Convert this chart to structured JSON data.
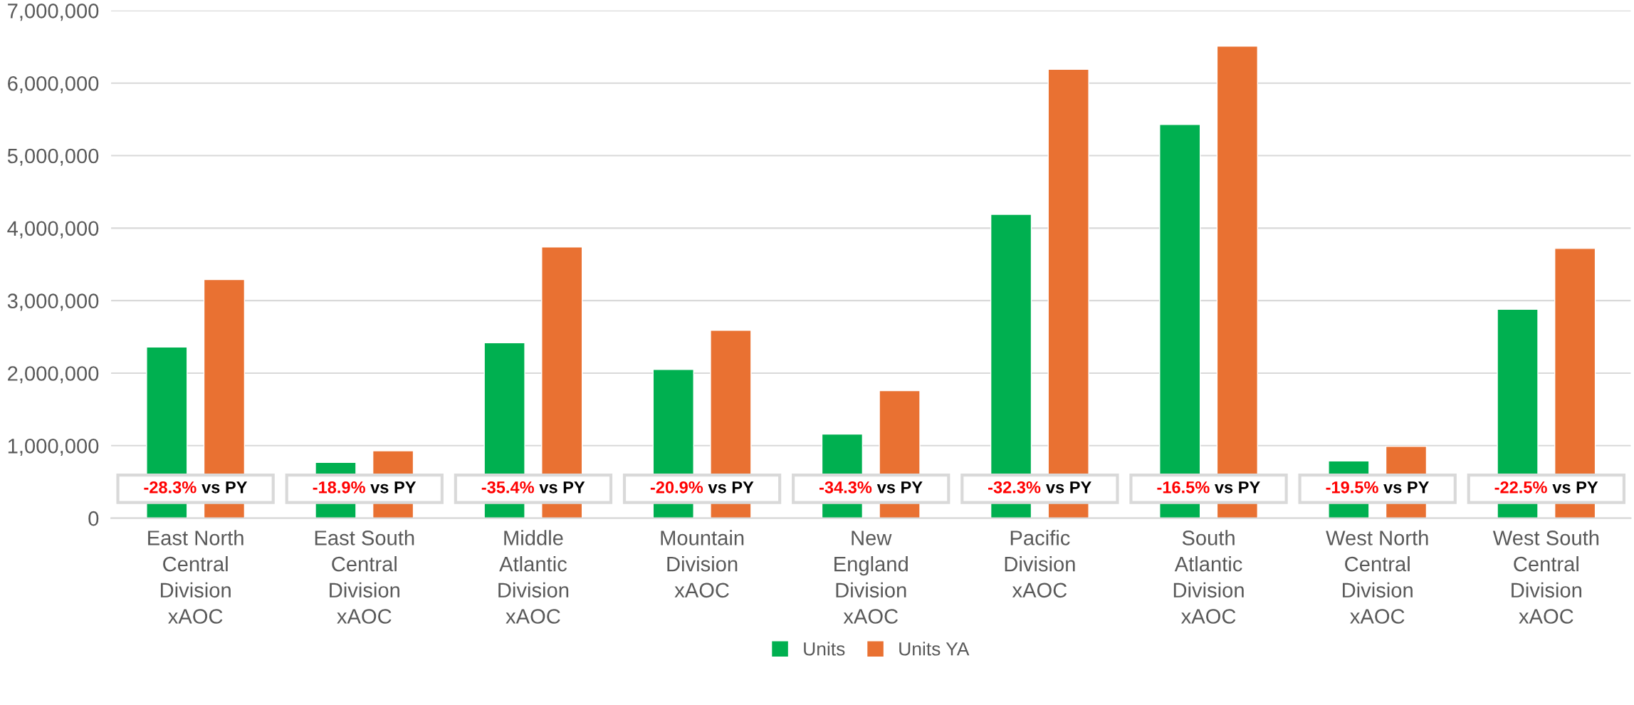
{
  "chart_data": {
    "type": "bar",
    "categories": [
      "East North Central Division xAOC",
      "East South Central Division xAOC",
      "Middle Atlantic Division xAOC",
      "Mountain Division xAOC",
      "New England Division xAOC",
      "Pacific Division xAOC",
      "South Atlantic Division xAOC",
      "West North Central Division xAOC",
      "West South Central Division xAOC"
    ],
    "series": [
      {
        "name": "Units",
        "color": "#00b050",
        "values": [
          2360000,
          770000,
          2420000,
          2050000,
          1160000,
          4190000,
          5430000,
          790000,
          2880000
        ]
      },
      {
        "name": "Units YA",
        "color": "#e97132",
        "values": [
          3290000,
          930000,
          3740000,
          2590000,
          1760000,
          6190000,
          6510000,
          990000,
          3720000
        ]
      }
    ],
    "ylim": [
      0,
      7000000
    ],
    "yticks": [
      {
        "value": 0,
        "label": "0"
      },
      {
        "value": 1000000,
        "label": "1,000,000"
      },
      {
        "value": 2000000,
        "label": "2,000,000"
      },
      {
        "value": 3000000,
        "label": "3,000,000"
      },
      {
        "value": 4000000,
        "label": "4,000,000"
      },
      {
        "value": 5000000,
        "label": "5,000,000"
      },
      {
        "value": 6000000,
        "label": "6,000,000"
      },
      {
        "value": 7000000,
        "label": "7,000,000"
      }
    ],
    "grid": "y",
    "legend": "bottom",
    "annotations": [
      "-28.3% vs PY",
      "-18.9% vs PY",
      "-35.4% vs PY",
      "-20.9% vs PY",
      "-34.3% vs PY",
      "-32.3% vs PY",
      "-16.5% vs PY",
      "-19.5% vs PY",
      "-22.5% vs PY"
    ]
  }
}
